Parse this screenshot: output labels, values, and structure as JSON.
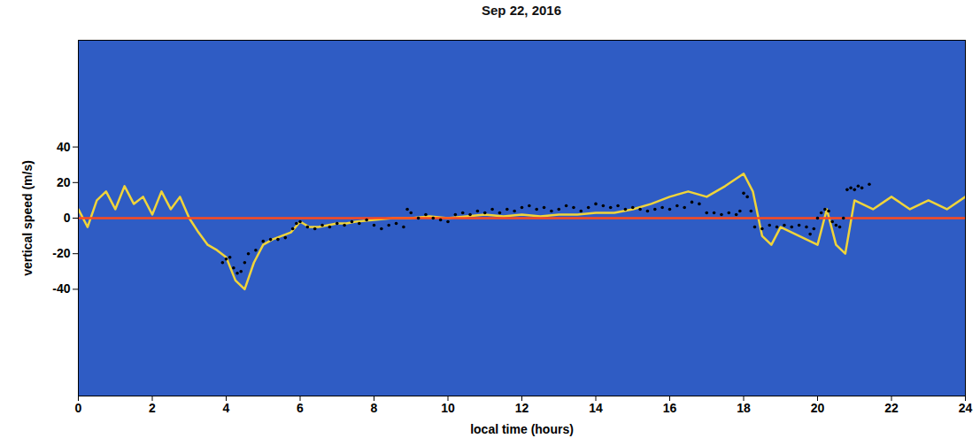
{
  "chart_data": {
    "type": "scatter",
    "title": "Sep 22, 2016",
    "x_label": "local time (hours)",
    "y_label": "vertical speed (m/s)",
    "xlim": [
      0,
      24
    ],
    "xticks": [
      0,
      2,
      4,
      6,
      8,
      10,
      12,
      14,
      16,
      18,
      20,
      22,
      24
    ],
    "ylim": [
      -100,
      100
    ],
    "yticks": [
      -40,
      -20,
      0,
      20,
      40
    ],
    "grid": false,
    "series": [
      {
        "type": "line",
        "color": "#f0d43a",
        "x": [
          0,
          0.25,
          0.5,
          0.75,
          1,
          1.25,
          1.5,
          1.75,
          2,
          2.25,
          2.5,
          2.75,
          3,
          3.25,
          3.5,
          3.75,
          4,
          4.25,
          4.5,
          4.75,
          5,
          5.25,
          5.5,
          5.75,
          6,
          6.25,
          6.5,
          6.75,
          7,
          7.25,
          7.5,
          8,
          8.5,
          9,
          9.5,
          10,
          10.5,
          11,
          11.5,
          12,
          12.5,
          13,
          13.5,
          14,
          14.5,
          15,
          15.5,
          16,
          16.5,
          17,
          17.5,
          18,
          18.25,
          18.5,
          18.75,
          19,
          19.5,
          20,
          20.25,
          20.5,
          20.75,
          21,
          21.5,
          22,
          22.5,
          23,
          23.5,
          24
        ],
        "values": [
          5,
          -5,
          10,
          15,
          5,
          18,
          8,
          12,
          2,
          15,
          5,
          12,
          0,
          -8,
          -15,
          -18,
          -22,
          -35,
          -40,
          -25,
          -15,
          -12,
          -10,
          -8,
          -2,
          -5,
          -5,
          -4,
          -3,
          -3,
          -2,
          -1,
          0,
          0,
          1,
          0,
          1,
          2,
          1,
          2,
          1,
          2,
          2,
          3,
          3,
          5,
          8,
          12,
          15,
          12,
          18,
          25,
          15,
          -10,
          -15,
          -5,
          -10,
          -15,
          5,
          -15,
          -20,
          10,
          5,
          12,
          5,
          10,
          5,
          12
        ]
      },
      {
        "type": "line",
        "color": "#ff4a1c",
        "x": [
          0,
          24
        ],
        "values": [
          0,
          0
        ]
      },
      {
        "type": "scatter",
        "color": "#000000",
        "x": [
          3.9,
          4.0,
          4.1,
          4.2,
          4.3,
          4.4,
          4.5,
          4.6,
          4.8,
          5.0,
          5.2,
          5.4,
          5.6,
          5.8,
          5.9,
          6.0,
          6.2,
          6.4,
          6.6,
          6.8,
          7.0,
          7.2,
          7.4,
          7.6,
          7.8,
          8.0,
          8.2,
          8.4,
          8.6,
          8.8,
          8.9,
          9.0,
          9.2,
          9.4,
          9.6,
          9.8,
          10.0,
          10.2,
          10.4,
          10.6,
          10.8,
          11.0,
          11.2,
          11.4,
          11.6,
          11.8,
          12.0,
          12.2,
          12.4,
          12.6,
          12.8,
          13.0,
          13.2,
          13.4,
          13.6,
          13.8,
          14.0,
          14.2,
          14.4,
          14.6,
          14.8,
          15.0,
          15.2,
          15.4,
          15.6,
          15.8,
          16.0,
          16.2,
          16.4,
          16.6,
          16.8,
          17.0,
          17.2,
          17.4,
          17.6,
          17.8,
          17.9,
          18.0,
          18.1,
          18.2,
          18.3,
          18.5,
          18.7,
          18.9,
          19.1,
          19.3,
          19.5,
          19.7,
          19.8,
          19.9,
          20.0,
          20.1,
          20.2,
          20.3,
          20.4,
          20.5,
          20.6,
          20.7,
          20.8,
          20.9,
          21.0,
          21.1,
          21.2,
          21.4
        ],
        "values": [
          -25,
          -23,
          -22,
          -28,
          -31,
          -30,
          -25,
          -20,
          -18,
          -13,
          -12,
          -12,
          -11,
          -6,
          -3,
          -2,
          -5,
          -6,
          -4,
          -5,
          -3,
          -4,
          -2,
          -3,
          -1,
          -4,
          -6,
          -4,
          -3,
          -5,
          5,
          3,
          0,
          2,
          0,
          -1,
          -2,
          2,
          3,
          2,
          4,
          3,
          5,
          3,
          5,
          4,
          6,
          7,
          5,
          6,
          4,
          5,
          7,
          6,
          4,
          6,
          8,
          7,
          6,
          7,
          5,
          6,
          5,
          4,
          5,
          6,
          5,
          7,
          6,
          9,
          8,
          3,
          3,
          2,
          3,
          2,
          4,
          14,
          12,
          4,
          -5,
          -6,
          -4,
          -5,
          -4,
          -5,
          -4,
          -5,
          -9,
          -6,
          0,
          3,
          5,
          4,
          -2,
          -4,
          -5,
          0,
          16,
          17,
          16,
          18,
          17,
          19
        ]
      }
    ]
  }
}
